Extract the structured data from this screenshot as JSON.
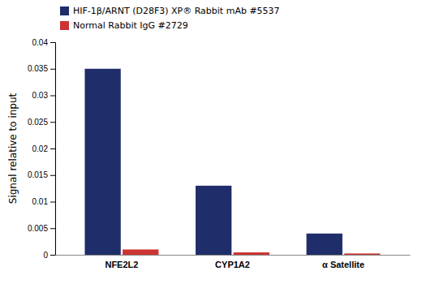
{
  "chart_data": {
    "type": "bar",
    "categories": [
      "NFE2L2",
      "CYP1A2",
      "α Satellite"
    ],
    "series": [
      {
        "name": "HIF-1β/ARNT (D28F3) XP® Rabbit mAb #5537",
        "color": "#1f2d6b",
        "values": [
          0.035,
          0.013,
          0.004
        ]
      },
      {
        "name": "Normal Rabbit IgG #2729",
        "color": "#cc3333",
        "values": [
          0.001,
          0.00045,
          0.00025
        ]
      }
    ],
    "ylabel": "Signal relative to input",
    "ylim": [
      0,
      0.04
    ],
    "yticks": [
      0,
      0.005,
      0.01,
      0.015,
      0.02,
      0.025,
      0.03,
      0.035,
      0.04
    ],
    "grid": false,
    "legend": "upper left"
  }
}
